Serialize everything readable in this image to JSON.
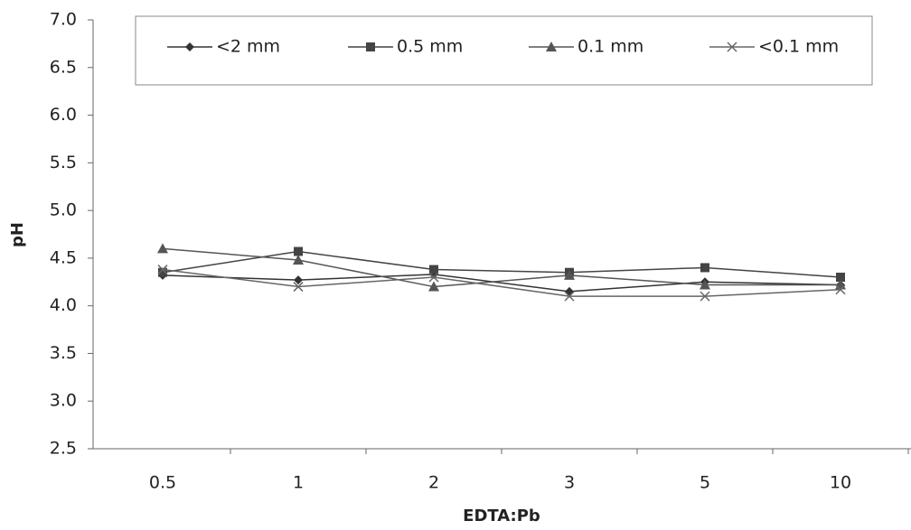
{
  "chart_data": {
    "type": "line",
    "x_label": "EDTA:Pb",
    "y_label": "pH",
    "categories": [
      "0.5",
      "1",
      "2",
      "3",
      "5",
      "10"
    ],
    "series": [
      {
        "name": "<2 mm",
        "color": "#333333",
        "marker": "diamond",
        "values": [
          4.32,
          4.27,
          4.33,
          4.15,
          4.25,
          4.22
        ]
      },
      {
        "name": "0.5 mm",
        "color": "#444444",
        "marker": "square",
        "values": [
          4.35,
          4.57,
          4.38,
          4.35,
          4.4,
          4.3
        ]
      },
      {
        "name": "0.1 mm",
        "color": "#555555",
        "marker": "triangle",
        "values": [
          4.6,
          4.48,
          4.2,
          4.32,
          4.22,
          4.22
        ]
      },
      {
        "name": "<0.1 mm",
        "color": "#666666",
        "marker": "x",
        "values": [
          4.38,
          4.2,
          4.3,
          4.1,
          4.1,
          4.17
        ]
      }
    ],
    "ylim": [
      2.5,
      7
    ],
    "yticks": [
      2.5,
      {
        "value": 3,
        "label": "3.0"
      },
      3.5,
      {
        "value": 4,
        "label": "4.0"
      },
      4.5,
      {
        "value": 5,
        "label": "5.0"
      },
      5.5,
      {
        "value": 6,
        "label": "6.0"
      },
      6.5,
      {
        "value": 7,
        "label": "7.0"
      }
    ],
    "legend": "top"
  }
}
